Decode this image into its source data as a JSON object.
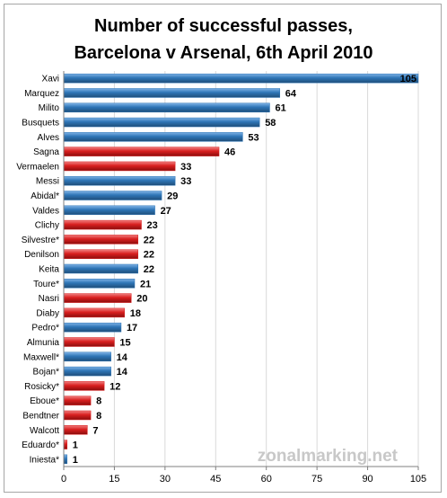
{
  "chart_data": {
    "type": "bar",
    "orientation": "horizontal",
    "title": [
      "Number of successful passes,",
      "Barcelona v Arsenal, 6th April 2010"
    ],
    "categories": [
      "Xavi",
      "Marquez",
      "Milito",
      "Busquets",
      "Alves",
      "Sagna",
      "Vermaelen",
      "Messi",
      "Abidal*",
      "Valdes",
      "Clichy",
      "Silvestre*",
      "Denilson",
      "Keita",
      "Toure*",
      "Nasri",
      "Diaby",
      "Pedro*",
      "Almunia",
      "Maxwell*",
      "Bojan*",
      "Rosicky*",
      "Eboue*",
      "Bendtner",
      "Walcott",
      "Eduardo*",
      "Iniesta*"
    ],
    "values": [
      105,
      64,
      61,
      58,
      53,
      46,
      33,
      33,
      29,
      27,
      23,
      22,
      22,
      22,
      21,
      20,
      18,
      17,
      15,
      14,
      14,
      12,
      8,
      8,
      7,
      1,
      1
    ],
    "teams": [
      "Barcelona",
      "Barcelona",
      "Barcelona",
      "Barcelona",
      "Barcelona",
      "Arsenal",
      "Arsenal",
      "Barcelona",
      "Barcelona",
      "Barcelona",
      "Arsenal",
      "Arsenal",
      "Arsenal",
      "Barcelona",
      "Barcelona",
      "Arsenal",
      "Arsenal",
      "Barcelona",
      "Arsenal",
      "Barcelona",
      "Barcelona",
      "Arsenal",
      "Arsenal",
      "Arsenal",
      "Arsenal",
      "Arsenal",
      "Barcelona"
    ],
    "team_colors": {
      "Barcelona": "#2e75b6",
      "Arsenal": "#d91f1f"
    },
    "xlim": [
      0,
      105
    ],
    "xticks": [
      0,
      15,
      30,
      45,
      60,
      75,
      90,
      105
    ],
    "xlabel": "",
    "ylabel": "",
    "grid": true,
    "legend": "none"
  },
  "watermark": "zonalmarking.net"
}
